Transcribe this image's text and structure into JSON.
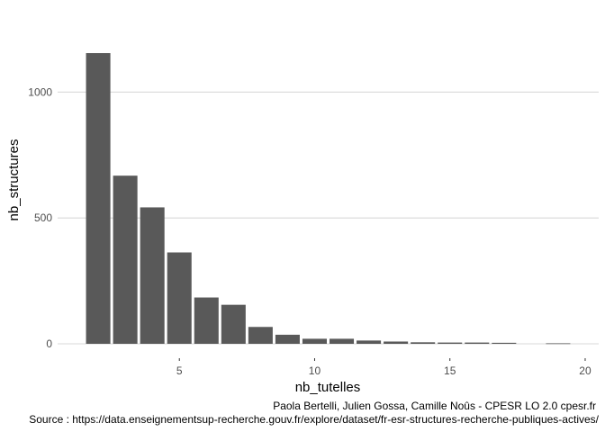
{
  "chart_data": {
    "type": "bar",
    "xlabel": "nb_tutelles",
    "ylabel": "nb_structures",
    "x": [
      2,
      3,
      4,
      5,
      6,
      7,
      8,
      9,
      10,
      11,
      12,
      13,
      14,
      15,
      16,
      17,
      19
    ],
    "values": [
      1155,
      668,
      542,
      363,
      184,
      155,
      67,
      36,
      20,
      20,
      13,
      9,
      6,
      5,
      5,
      4,
      2
    ],
    "xlim": [
      0.5,
      20.5
    ],
    "ylim": [
      0,
      1155
    ],
    "x_ticks": [
      5,
      10,
      15,
      20
    ],
    "x_tick_labels": [
      "5",
      "10",
      "15",
      "20"
    ],
    "y_ticks": [
      0,
      500,
      1000
    ],
    "y_tick_labels": [
      "0",
      "500",
      "1000"
    ],
    "grid": "horizontal",
    "legend": "none",
    "bar_color": "#595959",
    "grid_color": "#d9d9d9",
    "caption_lines": [
      "Paola Bertelli, Julien Gossa, Camille Noûs - CPESR LO 2.0 cpesr.fr",
      "Source : https://data.enseignementsup-recherche.gouv.fr/explore/dataset/fr-esr-structures-recherche-publiques-actives/"
    ]
  }
}
